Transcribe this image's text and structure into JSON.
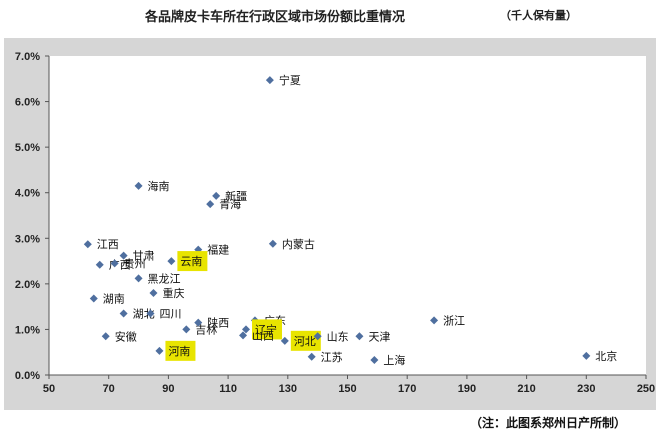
{
  "header": {
    "title": "各品牌皮卡车所在行政区域市场份额比重情况",
    "unit": "（千人保有量）"
  },
  "footer": {
    "note": "（注：此图系郑州日产所制）"
  },
  "chart_data": {
    "type": "scatter",
    "title": "各品牌皮卡车所在行政区域市场份额比重情况",
    "subtitle": "（千人保有量）",
    "xlabel": "",
    "ylabel": "",
    "xlim": [
      50,
      250
    ],
    "ylim": [
      0,
      0.07
    ],
    "x_ticks": [
      "50",
      "70",
      "90",
      "110",
      "130",
      "150",
      "170",
      "190",
      "210",
      "230",
      "250"
    ],
    "y_ticks": [
      "0.0%",
      "1.0%",
      "2.0%",
      "3.0%",
      "4.0%",
      "5.0%",
      "6.0%",
      "7.0%"
    ],
    "grid": false,
    "marker_color": "#4f6f9f",
    "highlight_color": "#e8e400",
    "points": [
      {
        "label": "宁夏",
        "x": 124,
        "y": 0.0647
      },
      {
        "label": "海南",
        "x": 80,
        "y": 0.0415
      },
      {
        "label": "新疆",
        "x": 106,
        "y": 0.0393
      },
      {
        "label": "青海",
        "x": 104,
        "y": 0.0375
      },
      {
        "label": "福建",
        "x": 100,
        "y": 0.0275
      },
      {
        "label": "江西",
        "x": 63,
        "y": 0.0287
      },
      {
        "label": "甘肃",
        "x": 75,
        "y": 0.0262
      },
      {
        "label": "广西",
        "x": 67,
        "y": 0.0242
      },
      {
        "label": "贵州",
        "x": 72,
        "y": 0.0245
      },
      {
        "label": "云南",
        "x": 91,
        "y": 0.025,
        "highlight": true
      },
      {
        "label": "黑龙江",
        "x": 80,
        "y": 0.0212
      },
      {
        "label": "重庆",
        "x": 85,
        "y": 0.018
      },
      {
        "label": "内蒙古",
        "x": 125,
        "y": 0.0288
      },
      {
        "label": "湖南",
        "x": 65,
        "y": 0.0168
      },
      {
        "label": "湖北",
        "x": 75,
        "y": 0.0135
      },
      {
        "label": "四川",
        "x": 84,
        "y": 0.0135
      },
      {
        "label": "安徽",
        "x": 69,
        "y": 0.0085
      },
      {
        "label": "吉林",
        "x": 96,
        "y": 0.01
      },
      {
        "label": "陕西",
        "x": 100,
        "y": 0.0115
      },
      {
        "label": "广东",
        "x": 119,
        "y": 0.012
      },
      {
        "label": "辽宁",
        "x": 116,
        "y": 0.01,
        "highlight": true
      },
      {
        "label": "山西",
        "x": 115,
        "y": 0.0087
      },
      {
        "label": "河北",
        "x": 129,
        "y": 0.0075,
        "highlight": true
      },
      {
        "label": "山东",
        "x": 140,
        "y": 0.0085
      },
      {
        "label": "河南",
        "x": 87,
        "y": 0.0053,
        "highlight": true
      },
      {
        "label": "江苏",
        "x": 138,
        "y": 0.004
      },
      {
        "label": "天津",
        "x": 154,
        "y": 0.0085
      },
      {
        "label": "上海",
        "x": 159,
        "y": 0.0033
      },
      {
        "label": "浙江",
        "x": 179,
        "y": 0.012
      },
      {
        "label": "北京",
        "x": 230,
        "y": 0.0042
      }
    ]
  }
}
